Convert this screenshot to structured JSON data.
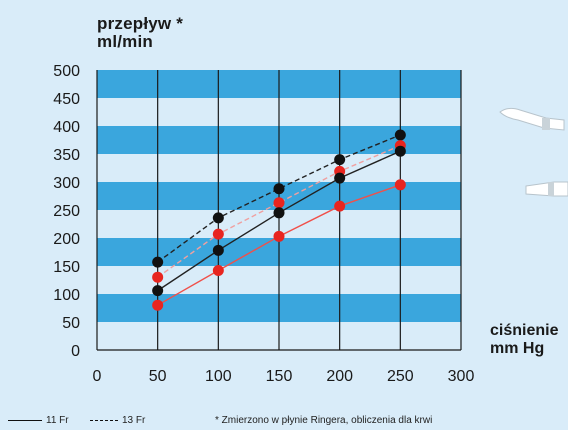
{
  "chart_data": {
    "type": "line",
    "ylabel_lines": [
      "przepływ *",
      "ml/min"
    ],
    "xlabel_lines": [
      "ciśnienie",
      "mm Hg"
    ],
    "xlim": [
      0,
      300
    ],
    "ylim": [
      0,
      500
    ],
    "x_ticks": [
      0,
      50,
      100,
      150,
      200,
      250,
      300
    ],
    "y_ticks": [
      0,
      50,
      100,
      150,
      200,
      250,
      300,
      350,
      400,
      450,
      500
    ],
    "grid": "horizontal bands and vertical lines",
    "series": [
      {
        "line_style": "dashed",
        "marker_color": "#111111",
        "x": [
          50,
          100,
          150,
          200,
          250
        ],
        "y": [
          157,
          236,
          288,
          340,
          384
        ]
      },
      {
        "line_style": "dashed",
        "marker_color": "#e8251f",
        "x": [
          50,
          100,
          150,
          200,
          250
        ],
        "y": [
          130,
          207,
          263,
          319,
          365
        ]
      },
      {
        "line_style": "solid",
        "marker_color": "#111111",
        "x": [
          50,
          100,
          150,
          200,
          250
        ],
        "y": [
          106,
          178,
          245,
          307,
          355
        ]
      },
      {
        "line_style": "solid",
        "marker_color": "#e8251f",
        "x": [
          50,
          100,
          150,
          200,
          250
        ],
        "y": [
          80,
          142,
          203,
          257,
          295
        ]
      }
    ],
    "legend": [
      {
        "label": "11 Fr",
        "style": "solid"
      },
      {
        "label": "13 Fr",
        "style": "dashed"
      }
    ],
    "footnote": "* Zmierzono w płynie Ringera, obliczenia dla krwi"
  },
  "colors": {
    "background": "#d9ecf9",
    "band": "#3aa6dd",
    "gridline": "#1a1a1a",
    "red": "#e8251f",
    "black": "#111111",
    "line_red": "#f0504a",
    "dashed_red": "#f0a0a0"
  }
}
